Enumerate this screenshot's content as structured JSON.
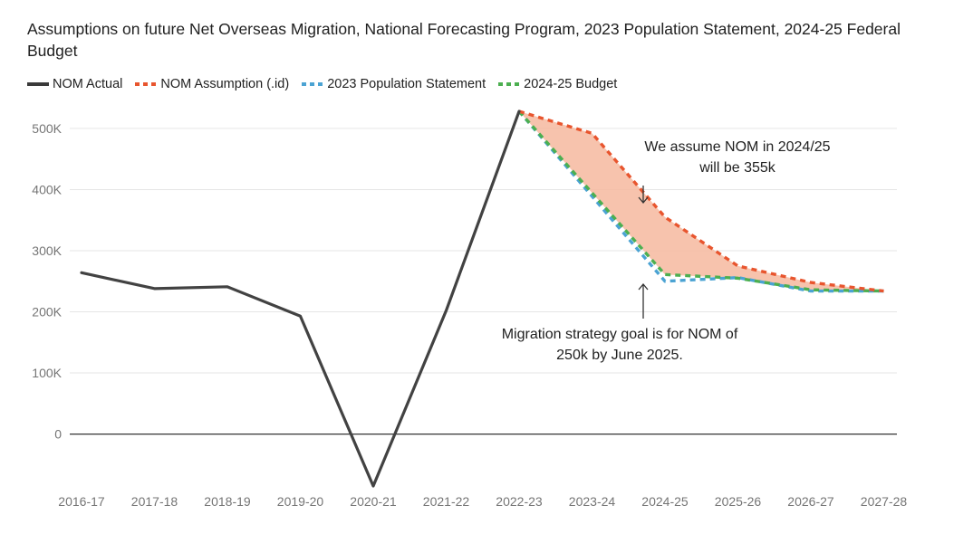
{
  "chart_data": {
    "type": "line",
    "title": "Assumptions on future Net Overseas Migration, National Forecasting Program, 2023 Population Statement, 2024-25 Federal Budget",
    "categories": [
      "2016-17",
      "2017-18",
      "2018-19",
      "2019-20",
      "2020-21",
      "2021-22",
      "2022-23",
      "2023-24",
      "2024-25",
      "2025-26",
      "2026-27",
      "2027-28"
    ],
    "ylim": [
      -85000,
      530000
    ],
    "yticks": [
      0,
      100000,
      200000,
      300000,
      400000,
      500000
    ],
    "ytick_labels": [
      "0",
      "100K",
      "200K",
      "300K",
      "400K",
      "500K"
    ],
    "grid": true,
    "legend_position": "top-left",
    "series": [
      {
        "name": "NOM Actual",
        "color": "#424242",
        "style": "solid",
        "values": [
          264000,
          238000,
          241000,
          193000,
          -85000,
          202000,
          528000,
          null,
          null,
          null,
          null,
          null
        ]
      },
      {
        "name": "NOM Assumption (.id)",
        "color": "#e8552e",
        "style": "dashed",
        "values": [
          null,
          null,
          null,
          null,
          null,
          null,
          528000,
          492000,
          355000,
          275000,
          248000,
          234000
        ]
      },
      {
        "name": "2023 Population Statement",
        "color": "#4ba3d3",
        "style": "dashed",
        "values": [
          null,
          null,
          null,
          null,
          null,
          null,
          528000,
          null,
          250000,
          256000,
          234000,
          234000
        ]
      },
      {
        "name": "2024-25 Budget",
        "color": "#4caf50",
        "style": "dashed",
        "values": [
          null,
          null,
          null,
          null,
          null,
          null,
          528000,
          null,
          261000,
          255000,
          236000,
          234000
        ]
      }
    ],
    "shaded_band": {
      "between": [
        "NOM Assumption (.id)",
        "2024-25 Budget"
      ],
      "color": "#f6b89f"
    },
    "annotations": [
      {
        "lines": [
          "We assume NOM in 2024/25",
          "will be 355k"
        ],
        "target_category": "2024-25",
        "arrow": "down"
      },
      {
        "lines": [
          "Migration strategy goal is for NOM of",
          "250k by June 2025."
        ],
        "target_category": "2024-25",
        "arrow": "up"
      }
    ]
  }
}
